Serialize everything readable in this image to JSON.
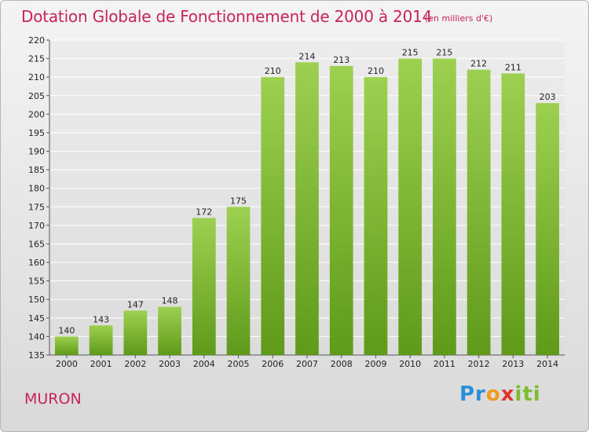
{
  "header": {
    "title": "Dotation Globale de Fonctionnement de 2000 à 2014",
    "subtitle": "(en milliers d'€)"
  },
  "footer": {
    "place": "MURON",
    "logo": {
      "p1": "Pr",
      "p2": "o",
      "p3": "x",
      "p4": "iti"
    }
  },
  "colors": {
    "bar_top": "#9dd050",
    "bar_bottom": "#5f9a1a",
    "title": "#c8235a"
  },
  "chart_data": {
    "type": "bar",
    "title": "Dotation Globale de Fonctionnement de 2000 à 2014",
    "subtitle": "(en milliers d'€)",
    "categories": [
      "2000",
      "2001",
      "2002",
      "2003",
      "2004",
      "2005",
      "2006",
      "2007",
      "2008",
      "2009",
      "2010",
      "2011",
      "2012",
      "2013",
      "2014"
    ],
    "values": [
      140,
      143,
      147,
      148,
      172,
      175,
      210,
      214,
      213,
      210,
      215,
      215,
      212,
      211,
      203
    ],
    "ylim": [
      135,
      220
    ],
    "yticks": [
      135,
      140,
      145,
      150,
      155,
      160,
      165,
      170,
      175,
      180,
      185,
      190,
      195,
      200,
      205,
      210,
      215,
      220
    ],
    "grid": true,
    "data_labels": true
  }
}
